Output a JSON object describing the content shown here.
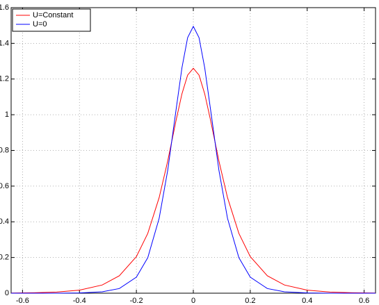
{
  "chart_data": {
    "type": "line",
    "x": [
      -0.64,
      -0.56,
      -0.48,
      -0.4,
      -0.32,
      -0.26,
      -0.2,
      -0.16,
      -0.12,
      -0.09,
      -0.06,
      -0.04,
      -0.02,
      0,
      0.02,
      0.04,
      0.06,
      0.09,
      0.12,
      0.16,
      0.2,
      0.26,
      0.32,
      0.4,
      0.48,
      0.56,
      0.64
    ],
    "series": [
      {
        "name": "U=Constant",
        "color": "#ff0000",
        "values": [
          0.00085,
          0.0023,
          0.0062,
          0.017,
          0.046,
          0.0975,
          0.205,
          0.335,
          0.536,
          0.74,
          0.973,
          1.117,
          1.222,
          1.26,
          1.222,
          1.117,
          0.973,
          0.74,
          0.536,
          0.335,
          0.205,
          0.0975,
          0.046,
          0.017,
          0.0062,
          0.0023,
          0.00085
        ]
      },
      {
        "name": "U=0",
        "color": "#0000ff",
        "values": [
          0,
          4e-05,
          0.0002,
          0.0014,
          0.0076,
          0.026,
          0.09,
          0.199,
          0.42,
          0.688,
          1.035,
          1.263,
          1.432,
          1.495,
          1.432,
          1.263,
          1.035,
          0.688,
          0.42,
          0.199,
          0.09,
          0.026,
          0.0076,
          0.0014,
          0.0002,
          4e-05,
          0
        ]
      }
    ],
    "xlim": [
      -0.64,
      0.64
    ],
    "ylim": [
      0,
      1.6
    ],
    "xticks": [
      -0.6,
      -0.4,
      -0.2,
      0,
      0.2,
      0.4,
      0.6
    ],
    "yticks": [
      0,
      0.2,
      0.4,
      0.6,
      0.8,
      1,
      1.2,
      1.4,
      1.6
    ],
    "grid": true,
    "legend": "top-left"
  }
}
